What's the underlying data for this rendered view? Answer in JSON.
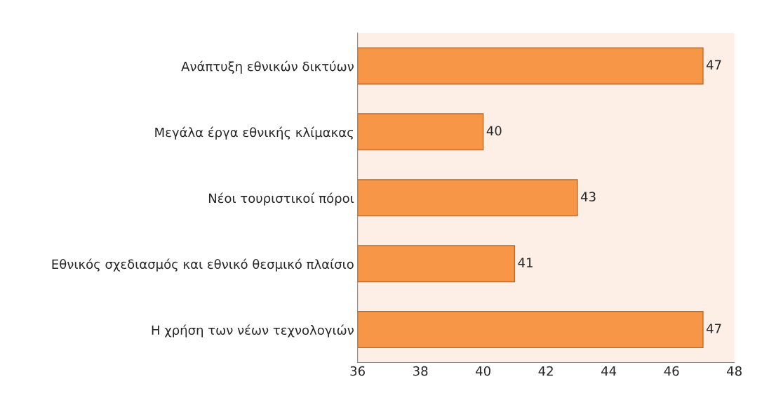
{
  "chart_data": {
    "type": "bar",
    "orientation": "horizontal",
    "categories": [
      "Ανάπτυξη εθνικών δικτύων",
      "Μεγάλα έργα εθνικής κλίμακας",
      "Νέοι τουριστικοί πόροι",
      "Εθνικός σχεδιασμός και εθνικό θεσμικό πλαίσιο",
      "Η χρήση των νέων τεχνολογιών"
    ],
    "values": [
      47,
      40,
      43,
      41,
      47
    ],
    "color": "#f79646",
    "xlim": [
      36,
      48
    ],
    "xticks": [
      36,
      38,
      40,
      42,
      44,
      46,
      48
    ],
    "grid": false,
    "data_labels": true
  }
}
